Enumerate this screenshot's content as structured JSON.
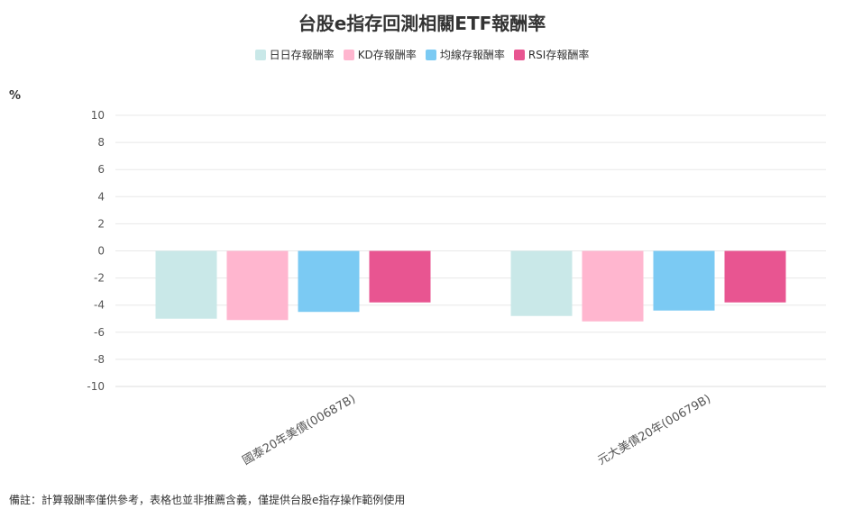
{
  "chart_data": {
    "type": "bar",
    "title": "台股e指存回測相關ETF報酬率",
    "ylabel": "%",
    "ylim": [
      -10,
      10
    ],
    "yticks": [
      10,
      8,
      6,
      4,
      2,
      0,
      -2,
      -4,
      -6,
      -8,
      -10
    ],
    "categories": [
      "國泰20年美債(00687B)",
      "元大美債20年(00679B)"
    ],
    "series": [
      {
        "name": "日日存報酬率",
        "color": "#c9e8e8",
        "values": [
          -5.0,
          -4.8
        ]
      },
      {
        "name": "KD存報酬率",
        "color": "#ffb6cf",
        "values": [
          -5.1,
          -5.2
        ]
      },
      {
        "name": "均線存報酬率",
        "color": "#7bcaf3",
        "values": [
          -4.5,
          -4.4
        ]
      },
      {
        "name": "RSI存報酬率",
        "color": "#e85591",
        "values": [
          -3.8,
          -3.8
        ]
      }
    ],
    "grid": true,
    "legend_position": "top-center"
  },
  "footnote": "備註：計算報酬率僅供參考，表格也並非推薦含義，僅提供台股e指存操作範例使用"
}
